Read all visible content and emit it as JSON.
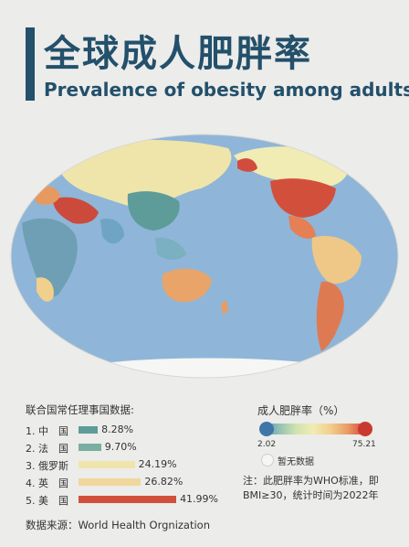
{
  "title_cn": "全球成人肥胖率",
  "title_en": "Prevalence of obesity among adults",
  "un_title": "联合国常任理事国数据:",
  "countries": [
    {
      "label": "1. 中　国",
      "value": 8.28,
      "value_text": "8.28%",
      "color": "#5d9c99"
    },
    {
      "label": "2. 法　国",
      "value": 9.7,
      "value_text": "9.70%",
      "color": "#7aaea0"
    },
    {
      "label": "3. 俄罗斯",
      "value": 24.19,
      "value_text": "24.19%",
      "color": "#efe5ab"
    },
    {
      "label": "4. 英　国",
      "value": 26.82,
      "value_text": "26.82%",
      "color": "#f0d79d"
    },
    {
      "label": "5. 美　国",
      "value": 41.99,
      "value_text": "41.99%",
      "color": "#d2503b"
    }
  ],
  "legend": {
    "title": "成人肥胖率（%）",
    "min": "2.02",
    "max": "75.21",
    "nodata": "暂无数据",
    "colors": {
      "low": "#4f86b8",
      "mid": "#f1ebb4",
      "high": "#d4473b",
      "ocean": "#8fb6d8",
      "nodata": "#f6f6f4"
    }
  },
  "note": "注：此肥胖率为WHO标准，即BMI≥30，统计时间为2022年",
  "source": "数据来源：World Health Orgnization"
}
